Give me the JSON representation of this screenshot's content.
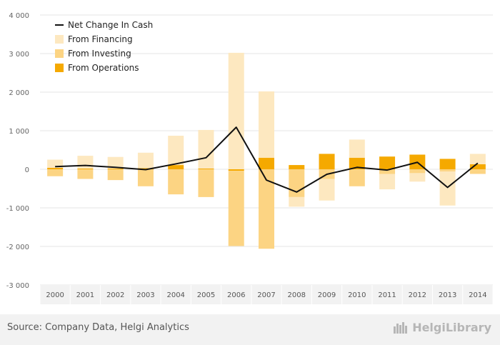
{
  "chart_data": {
    "type": "bar",
    "categories": [
      "2000",
      "2001",
      "2002",
      "2003",
      "2004",
      "2005",
      "2006",
      "2007",
      "2008",
      "2009",
      "2010",
      "2011",
      "2012",
      "2013",
      "2014"
    ],
    "series": [
      {
        "name": "Net Change In Cash",
        "kind": "line",
        "color": "#111111",
        "values": [
          70,
          100,
          50,
          -10,
          140,
          300,
          1090,
          -280,
          -590,
          -130,
          50,
          -20,
          180,
          -470,
          160
        ]
      },
      {
        "name": "From Financing",
        "kind": "bar",
        "color": "#fde8c0",
        "values": [
          210,
          330,
          300,
          400,
          760,
          1000,
          3020,
          1720,
          -250,
          -560,
          470,
          -400,
          -220,
          -880,
          270
        ]
      },
      {
        "name": "From Investing",
        "kind": "bar",
        "color": "#fcd483",
        "values": [
          -180,
          -250,
          -280,
          -440,
          -650,
          -720,
          -1950,
          -2060,
          -720,
          -250,
          -440,
          -120,
          -100,
          -60,
          -120
        ]
      },
      {
        "name": "From Operations",
        "kind": "bar",
        "color": "#f5a900",
        "values": [
          40,
          20,
          20,
          30,
          110,
          20,
          -40,
          300,
          110,
          400,
          300,
          330,
          380,
          270,
          130
        ]
      }
    ],
    "ylim": [
      -3000,
      4000
    ],
    "yticks": [
      -3000,
      -2000,
      -1000,
      0,
      1000,
      2000,
      3000,
      4000
    ],
    "ytick_labels": [
      "-3 000",
      "-2 000",
      "-1 000",
      "0",
      "1 000",
      "2 000",
      "3 000",
      "4 000"
    ],
    "legend_position": "top-left",
    "grid": true
  },
  "footer": {
    "source": "Source: Company Data, Helgi Analytics",
    "brand": "HelgiLibrary"
  }
}
